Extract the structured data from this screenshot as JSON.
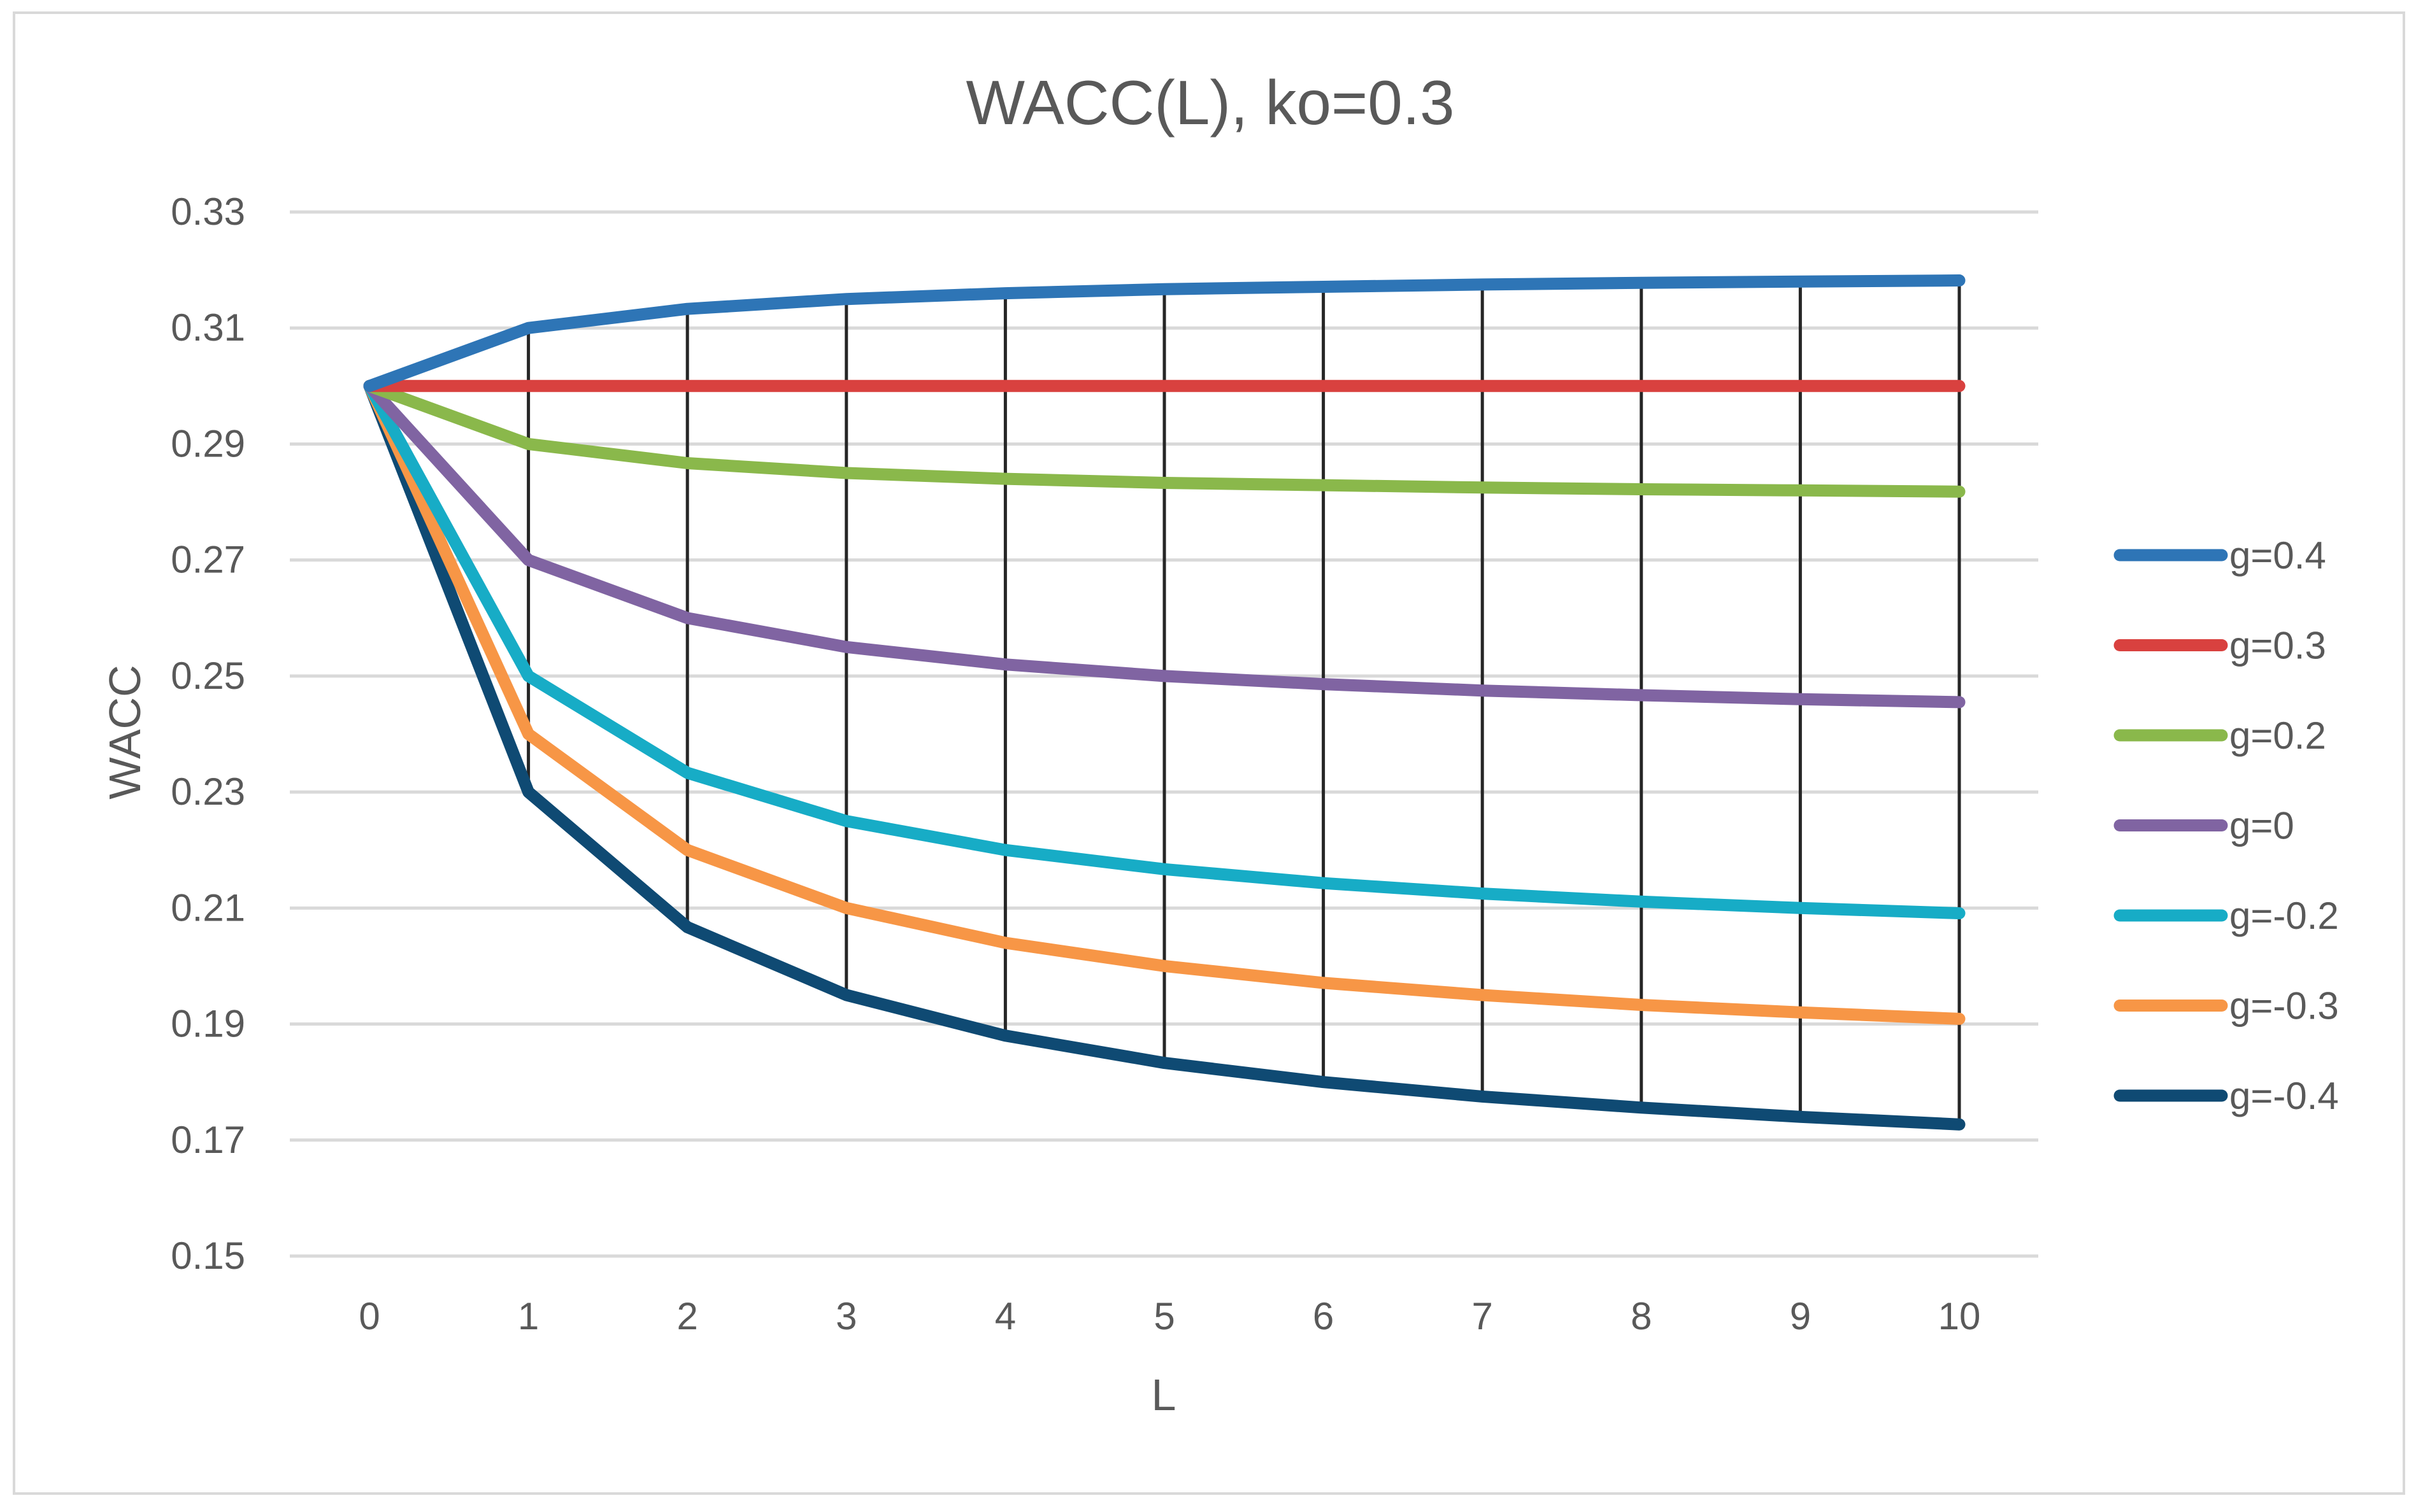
{
  "chart_data": {
    "type": "line",
    "title": "WACC(L), ko=0.3",
    "xlabel": "L",
    "ylabel": "WACC",
    "x": [
      0,
      1,
      2,
      3,
      4,
      5,
      6,
      7,
      8,
      9,
      10
    ],
    "x_tick_labels": [
      "0",
      "1",
      "2",
      "3",
      "4",
      "5",
      "6",
      "7",
      "8",
      "9",
      "10"
    ],
    "ylim": [
      0.15,
      0.33
    ],
    "y_ticks": [
      0.15,
      0.17,
      0.19,
      0.21,
      0.23,
      0.25,
      0.27,
      0.29,
      0.31,
      0.33
    ],
    "y_tick_labels": [
      "0.15",
      "0.17",
      "0.19",
      "0.21",
      "0.23",
      "0.25",
      "0.27",
      "0.29",
      "0.31",
      "0.33"
    ],
    "grid": true,
    "legend_position": "right",
    "drop_lines": true,
    "series": [
      {
        "name": "g=0.4",
        "color": "#2e75b6",
        "values": [
          0.3,
          0.31,
          0.3133,
          0.315,
          0.316,
          0.3167,
          0.3171,
          0.3175,
          0.3178,
          0.318,
          0.3182
        ]
      },
      {
        "name": "g=0.3",
        "color": "#d9413f",
        "values": [
          0.3,
          0.3,
          0.3,
          0.3,
          0.3,
          0.3,
          0.3,
          0.3,
          0.3,
          0.3,
          0.3
        ]
      },
      {
        "name": "g=0.2",
        "color": "#8ab84b",
        "values": [
          0.3,
          0.29,
          0.2867,
          0.285,
          0.284,
          0.2833,
          0.2829,
          0.2825,
          0.2822,
          0.282,
          0.2818
        ]
      },
      {
        "name": "g=0",
        "color": "#8064a2",
        "values": [
          0.3,
          0.27,
          0.26,
          0.255,
          0.252,
          0.25,
          0.2486,
          0.2475,
          0.2467,
          0.246,
          0.2455
        ]
      },
      {
        "name": "g=-0.2",
        "color": "#17acc6",
        "values": [
          0.3,
          0.25,
          0.2333,
          0.225,
          0.22,
          0.2167,
          0.2143,
          0.2125,
          0.2111,
          0.21,
          0.2091
        ]
      },
      {
        "name": "g=-0.3",
        "color": "#f79646",
        "values": [
          0.3,
          0.24,
          0.22,
          0.21,
          0.204,
          0.2,
          0.1971,
          0.195,
          0.1933,
          0.192,
          0.1909
        ]
      },
      {
        "name": "g=-0.4",
        "color": "#0f4a73",
        "values": [
          0.3,
          0.23,
          0.2067,
          0.195,
          0.188,
          0.1833,
          0.18,
          0.1775,
          0.1756,
          0.174,
          0.1727
        ]
      }
    ]
  }
}
